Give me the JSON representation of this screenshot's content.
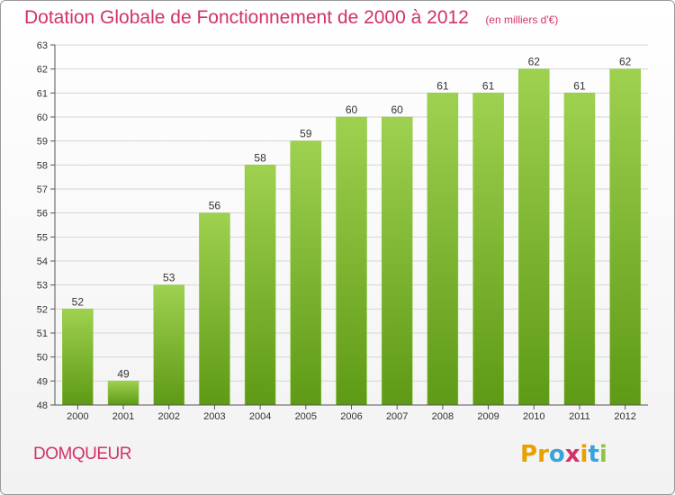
{
  "header": {
    "title": "Dotation Globale de Fonctionnement de 2000 à 2012",
    "unit_note": "(en milliers d'€)"
  },
  "footer": {
    "commune": "DOMQUEUR",
    "brand": "Proxiti",
    "brand_colors": [
      "#e8a000",
      "#e8a000",
      "#3aa3d9",
      "#d2326a",
      "#e8a000",
      "#3aa3d9",
      "#8cc63f"
    ]
  },
  "colors": {
    "title": "#d2326a",
    "bar_top": "#9ed14f",
    "bar_bottom": "#5e9a15",
    "grid": "#d6d6d6",
    "axis": "#555555"
  },
  "chart_data": {
    "type": "bar",
    "categories": [
      "2000",
      "2001",
      "2002",
      "2003",
      "2004",
      "2005",
      "2006",
      "2007",
      "2008",
      "2009",
      "2010",
      "2011",
      "2012"
    ],
    "values": [
      52,
      49,
      53,
      56,
      58,
      59,
      60,
      60,
      61,
      61,
      62,
      61,
      62
    ],
    "ylim": [
      48,
      63
    ],
    "yticks": [
      48,
      49,
      50,
      51,
      52,
      53,
      54,
      55,
      56,
      57,
      58,
      59,
      60,
      61,
      62,
      63
    ],
    "grid": true,
    "data_labels": true
  }
}
